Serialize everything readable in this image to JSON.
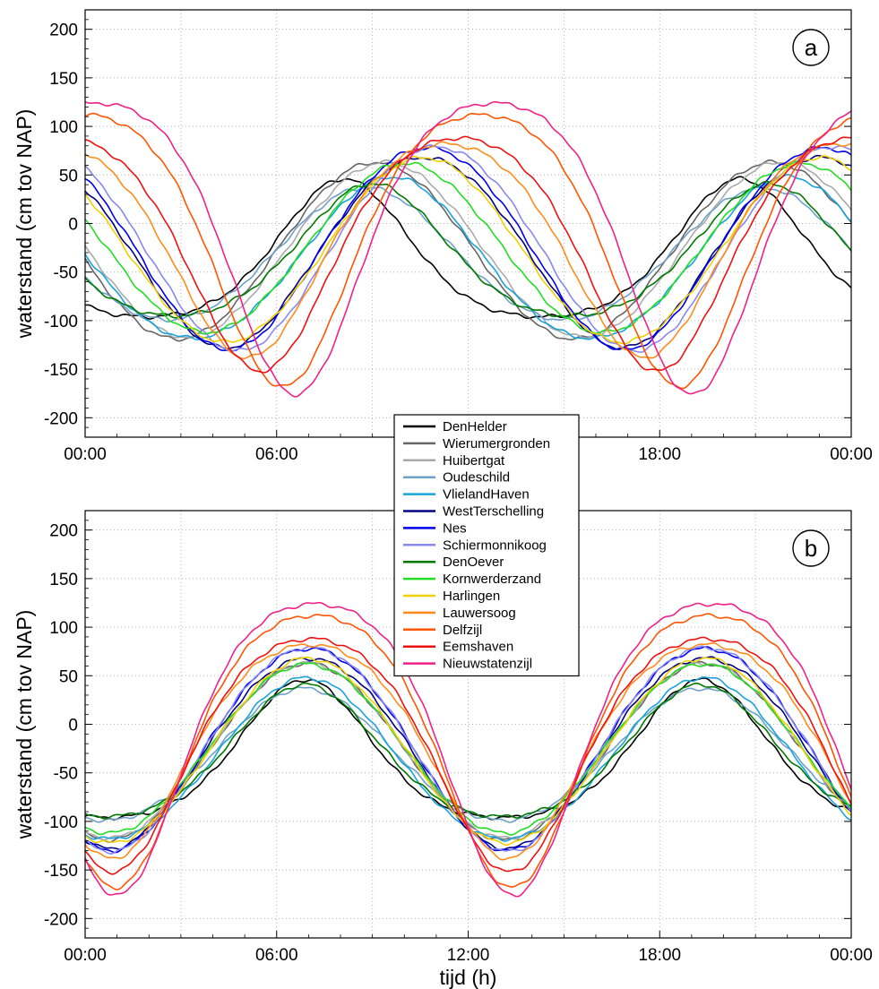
{
  "chart_data": [
    {
      "type": "line",
      "panel_label": "a",
      "xlabel": "",
      "ylabel": "waterstand (cm tov NAP)",
      "x_ticks": [
        "00:00",
        "06:00",
        "12:00",
        "18:00",
        "00:00"
      ],
      "x_ticklabels_shown": [
        true,
        true,
        false,
        true,
        true
      ],
      "xlim": [
        0,
        24
      ],
      "ylim": [
        -220,
        220
      ],
      "y_ticks": [
        -200,
        -150,
        -100,
        -50,
        0,
        50,
        100,
        150,
        200
      ],
      "grid": true,
      "series": [
        {
          "name": "DenHelder",
          "color": "#000000",
          "amplitude": 71,
          "mean": -25,
          "phase_h": 8.1,
          "skew": -0.45
        },
        {
          "name": "Wierumergronden",
          "color": "#666666",
          "amplitude": 91,
          "mean": -28,
          "phase_h": 9.1,
          "skew": 0
        },
        {
          "name": "Huibertgat",
          "color": "#aaaaaa",
          "amplitude": 90,
          "mean": -27,
          "phase_h": 9.4,
          "skew": 0
        },
        {
          "name": "Oudeschild",
          "color": "#6fa0c8",
          "amplitude": 68,
          "mean": -31,
          "phase_h": 8.8,
          "skew": -0.1
        },
        {
          "name": "VlielandHaven",
          "color": "#1aa3dc",
          "amplitude": 83,
          "mean": -35,
          "phase_h": 9.6,
          "skew": -0.1
        },
        {
          "name": "WestTerschelling",
          "color": "#000080",
          "amplitude": 98,
          "mean": -30,
          "phase_h": 10.6,
          "skew": 0.1
        },
        {
          "name": "Nes",
          "color": "#0000ee",
          "amplitude": 104,
          "mean": -26,
          "phase_h": 10.7,
          "skew": 0.1
        },
        {
          "name": "Schiermonnikoog",
          "color": "#8888ee",
          "amplitude": 105,
          "mean": -26,
          "phase_h": 11.0,
          "skew": 0.1
        },
        {
          "name": "DenOever",
          "color": "#007a00",
          "amplitude": 68,
          "mean": -27,
          "phase_h": 9.0,
          "skew": -0.3
        },
        {
          "name": "Kornwerderzand",
          "color": "#22dd22",
          "amplitude": 87,
          "mean": -25,
          "phase_h": 10.0,
          "skew": 0
        },
        {
          "name": "Harlingen",
          "color": "#f0d000",
          "amplitude": 95,
          "mean": -27,
          "phase_h": 10.6,
          "skew": 0
        },
        {
          "name": "Lauwersoog",
          "color": "#ff8c1a",
          "amplitude": 110,
          "mean": -28,
          "phase_h": 11.3,
          "skew": 0.3
        },
        {
          "name": "Delfzijl",
          "color": "#ff5500",
          "amplitude": 140,
          "mean": -28,
          "phase_h": 12.4,
          "skew": 0.4
        },
        {
          "name": "Eemshaven",
          "color": "#ee1111",
          "amplitude": 120,
          "mean": -32,
          "phase_h": 11.7,
          "skew": 0.35
        },
        {
          "name": "Nieuwstatenzijl",
          "color": "#ee2288",
          "amplitude": 150,
          "mean": -26,
          "phase_h": 12.8,
          "skew": 0.45
        }
      ]
    },
    {
      "type": "line",
      "panel_label": "b",
      "xlabel": "tijd (h)",
      "ylabel": "waterstand (cm tov NAP)",
      "x_ticks": [
        "00:00",
        "06:00",
        "12:00",
        "18:00",
        "00:00"
      ],
      "x_ticklabels_shown": [
        true,
        true,
        true,
        true,
        true
      ],
      "xlim": [
        0,
        24
      ],
      "ylim": [
        -220,
        220
      ],
      "y_ticks": [
        -200,
        -150,
        -100,
        -50,
        0,
        50,
        100,
        150,
        200
      ],
      "grid": true,
      "series_phase_h": 7.0,
      "series_note_same_stations_as": "a"
    }
  ],
  "legend": {
    "entries": [
      "DenHelder",
      "Wierumergronden",
      "Huibertgat",
      "Oudeschild",
      "VlielandHaven",
      "WestTerschelling",
      "Nes",
      "Schiermonnikoog",
      "DenOever",
      "Kornwerderzand",
      "Harlingen",
      "Lauwersoog",
      "Delfzijl",
      "Eemshaven",
      "Nieuwstatenzijl"
    ]
  }
}
